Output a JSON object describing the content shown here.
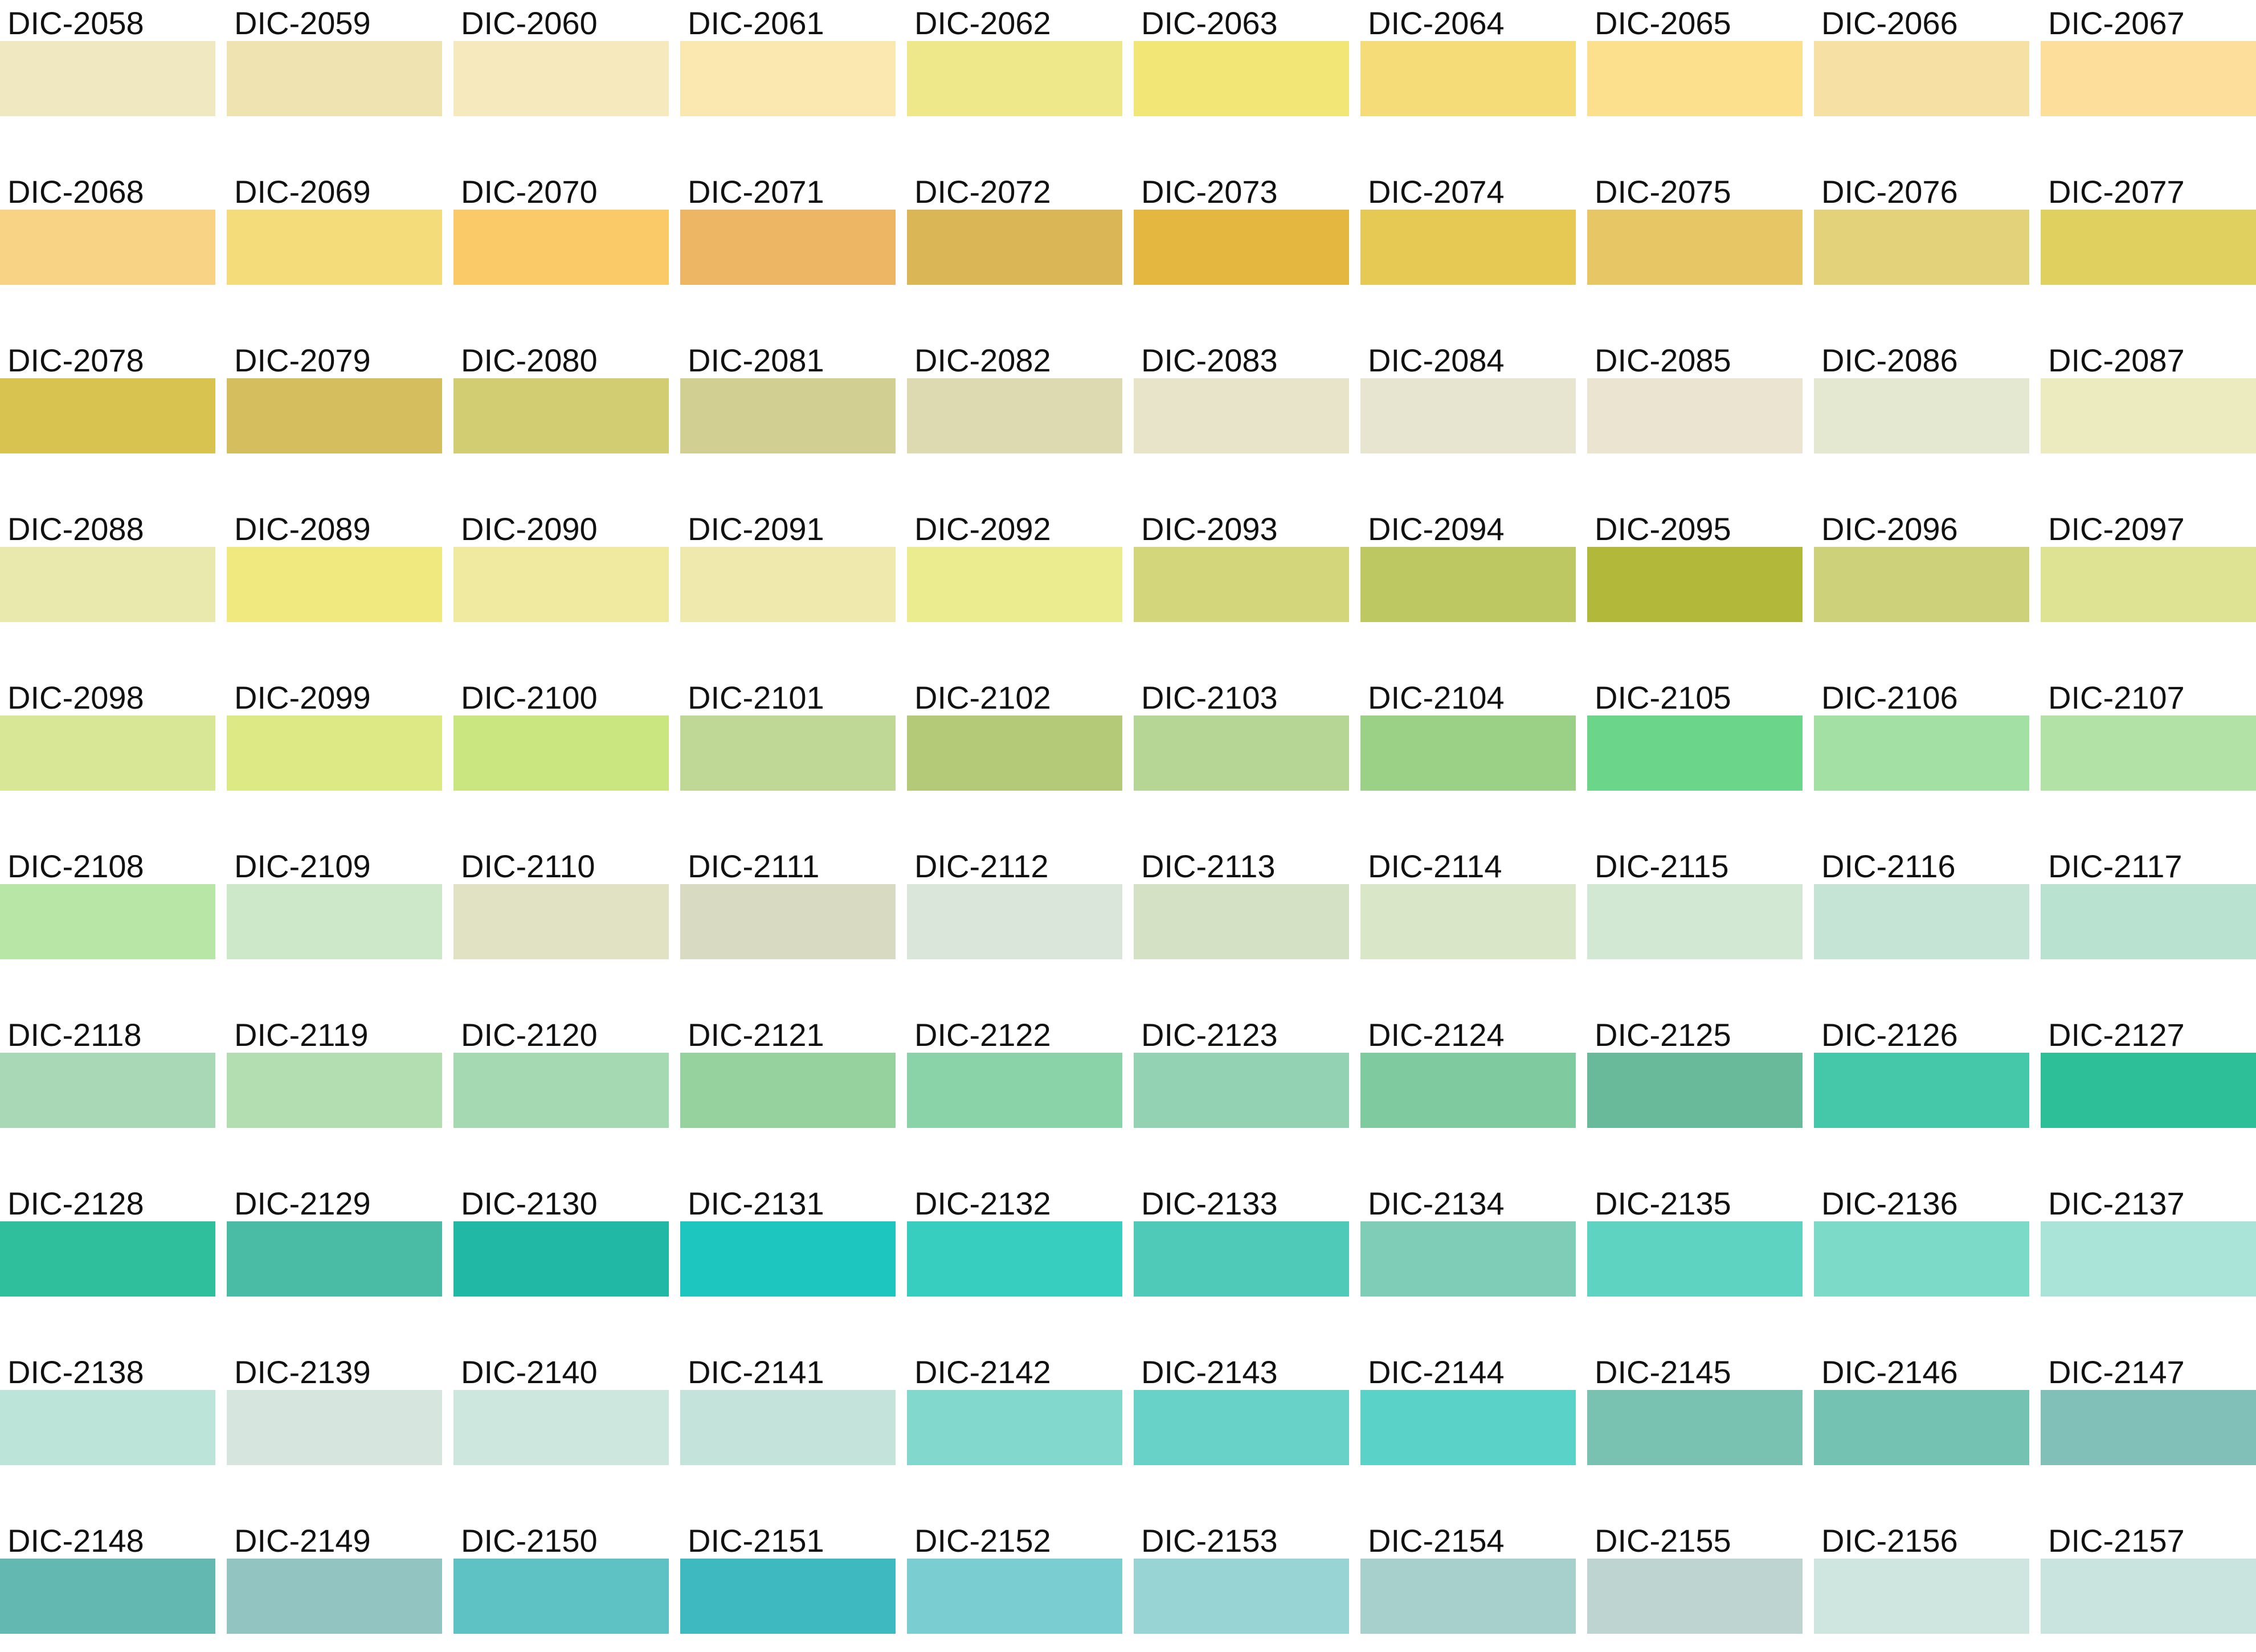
{
  "swatches": [
    {
      "code": "DIC-2058",
      "color": "#efe8c0"
    },
    {
      "code": "DIC-2059",
      "color": "#f0e3b2"
    },
    {
      "code": "DIC-2060",
      "color": "#f5e9bd"
    },
    {
      "code": "DIC-2061",
      "color": "#fbe8b0"
    },
    {
      "code": "DIC-2062",
      "color": "#efe88a"
    },
    {
      "code": "DIC-2063",
      "color": "#f2e677"
    },
    {
      "code": "DIC-2064",
      "color": "#f6dc78"
    },
    {
      "code": "DIC-2065",
      "color": "#fde08e"
    },
    {
      "code": "DIC-2066",
      "color": "#f6e0a3"
    },
    {
      "code": "DIC-2067",
      "color": "#fddf9b"
    },
    {
      "code": "DIC-2068",
      "color": "#f9d385"
    },
    {
      "code": "DIC-2069",
      "color": "#f5dc7a"
    },
    {
      "code": "DIC-2070",
      "color": "#fbca68"
    },
    {
      "code": "DIC-2071",
      "color": "#edb664"
    },
    {
      "code": "DIC-2072",
      "color": "#dbb656"
    },
    {
      "code": "DIC-2073",
      "color": "#e4b840"
    },
    {
      "code": "DIC-2074",
      "color": "#e6c855"
    },
    {
      "code": "DIC-2075",
      "color": "#e6c665"
    },
    {
      "code": "DIC-2076",
      "color": "#e3d27a"
    },
    {
      "code": "DIC-2077",
      "color": "#e0d060"
    },
    {
      "code": "DIC-2078",
      "color": "#d8c350"
    },
    {
      "code": "DIC-2079",
      "color": "#d4be5e"
    },
    {
      "code": "DIC-2080",
      "color": "#d2cd72"
    },
    {
      "code": "DIC-2081",
      "color": "#d2cf93"
    },
    {
      "code": "DIC-2082",
      "color": "#ddd9b0"
    },
    {
      "code": "DIC-2083",
      "color": "#e7e4c9"
    },
    {
      "code": "DIC-2084",
      "color": "#e7e4d0"
    },
    {
      "code": "DIC-2085",
      "color": "#ebe4d1"
    },
    {
      "code": "DIC-2086",
      "color": "#e4e8d0"
    },
    {
      "code": "DIC-2087",
      "color": "#ecebc0"
    },
    {
      "code": "DIC-2088",
      "color": "#eae9ad"
    },
    {
      "code": "DIC-2089",
      "color": "#efe97f"
    },
    {
      "code": "DIC-2090",
      "color": "#f0e9a0"
    },
    {
      "code": "DIC-2091",
      "color": "#efe9ae"
    },
    {
      "code": "DIC-2092",
      "color": "#ebeb8f"
    },
    {
      "code": "DIC-2093",
      "color": "#d3d67a"
    },
    {
      "code": "DIC-2094",
      "color": "#bdc862"
    },
    {
      "code": "DIC-2095",
      "color": "#b1b83a"
    },
    {
      "code": "DIC-2096",
      "color": "#cdd27a"
    },
    {
      "code": "DIC-2097",
      "color": "#dde392"
    },
    {
      "code": "DIC-2098",
      "color": "#d7e795"
    },
    {
      "code": "DIC-2099",
      "color": "#dde985"
    },
    {
      "code": "DIC-2100",
      "color": "#c9e680"
    },
    {
      "code": "DIC-2101",
      "color": "#bfd895"
    },
    {
      "code": "DIC-2102",
      "color": "#b4ca79"
    },
    {
      "code": "DIC-2103",
      "color": "#b5d694"
    },
    {
      "code": "DIC-2104",
      "color": "#9bd187"
    },
    {
      "code": "DIC-2105",
      "color": "#6bd689"
    },
    {
      "code": "DIC-2106",
      "color": "#a2e0a4"
    },
    {
      "code": "DIC-2107",
      "color": "#b3e2a7"
    },
    {
      "code": "DIC-2108",
      "color": "#b8e6a7"
    },
    {
      "code": "DIC-2109",
      "color": "#cde8c8"
    },
    {
      "code": "DIC-2110",
      "color": "#e1e1c4"
    },
    {
      "code": "DIC-2111",
      "color": "#d8dbc1"
    },
    {
      "code": "DIC-2112",
      "color": "#dbe6da"
    },
    {
      "code": "DIC-2113",
      "color": "#d5e1c5"
    },
    {
      "code": "DIC-2114",
      "color": "#d9e7c8"
    },
    {
      "code": "DIC-2115",
      "color": "#d3e8d3"
    },
    {
      "code": "DIC-2116",
      "color": "#c6e4d5"
    },
    {
      "code": "DIC-2117",
      "color": "#b9e2d1"
    },
    {
      "code": "DIC-2118",
      "color": "#a8d8b5"
    },
    {
      "code": "DIC-2119",
      "color": "#b2deb1"
    },
    {
      "code": "DIC-2120",
      "color": "#a4d9b2"
    },
    {
      "code": "DIC-2121",
      "color": "#95d29d"
    },
    {
      "code": "DIC-2122",
      "color": "#8ad3a8"
    },
    {
      "code": "DIC-2123",
      "color": "#93d3b4"
    },
    {
      "code": "DIC-2124",
      "color": "#7fcb9f"
    },
    {
      "code": "DIC-2125",
      "color": "#68ba9a"
    },
    {
      "code": "DIC-2126",
      "color": "#44c8a9"
    },
    {
      "code": "DIC-2127",
      "color": "#2cbf98"
    },
    {
      "code": "DIC-2128",
      "color": "#2fbf9d"
    },
    {
      "code": "DIC-2129",
      "color": "#4abca6"
    },
    {
      "code": "DIC-2130",
      "color": "#21b9a5"
    },
    {
      "code": "DIC-2131",
      "color": "#1ec6c0"
    },
    {
      "code": "DIC-2132",
      "color": "#37cdbf"
    },
    {
      "code": "DIC-2133",
      "color": "#50cab8"
    },
    {
      "code": "DIC-2134",
      "color": "#80cdb7"
    },
    {
      "code": "DIC-2135",
      "color": "#5fd3c2"
    },
    {
      "code": "DIC-2136",
      "color": "#7cdac9"
    },
    {
      "code": "DIC-2137",
      "color": "#aae3d7"
    },
    {
      "code": "DIC-2138",
      "color": "#bde4d9"
    },
    {
      "code": "DIC-2139",
      "color": "#d6e5dd"
    },
    {
      "code": "DIC-2140",
      "color": "#cde6de"
    },
    {
      "code": "DIC-2141",
      "color": "#c4e4db"
    },
    {
      "code": "DIC-2142",
      "color": "#82d8cd"
    },
    {
      "code": "DIC-2143",
      "color": "#68d2c9"
    },
    {
      "code": "DIC-2144",
      "color": "#5ad2c8"
    },
    {
      "code": "DIC-2145",
      "color": "#79c2b2"
    },
    {
      "code": "DIC-2146",
      "color": "#74c3b2"
    },
    {
      "code": "DIC-2147",
      "color": "#80c0b8"
    },
    {
      "code": "DIC-2148",
      "color": "#63b8b2"
    },
    {
      "code": "DIC-2149",
      "color": "#92c5c2"
    },
    {
      "code": "DIC-2150",
      "color": "#5ec1c3"
    },
    {
      "code": "DIC-2151",
      "color": "#3db9bf"
    },
    {
      "code": "DIC-2152",
      "color": "#7acdd0"
    },
    {
      "code": "DIC-2153",
      "color": "#97d4d3"
    },
    {
      "code": "DIC-2154",
      "color": "#a7cfcc"
    },
    {
      "code": "DIC-2155",
      "color": "#bed4d1"
    },
    {
      "code": "DIC-2156",
      "color": "#cfe5df"
    },
    {
      "code": "DIC-2157",
      "color": "#c9e3df"
    }
  ]
}
